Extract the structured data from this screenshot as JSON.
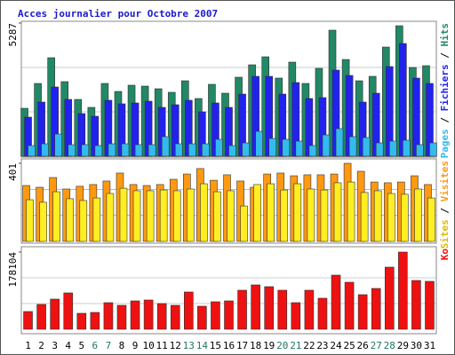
{
  "chart_data": [
    {
      "type": "bar",
      "title": "Acces journalier pour Octobre 2007",
      "ylim": [
        0,
        5287
      ],
      "yticks": [
        5287
      ],
      "legend_separator": " / ",
      "series": [
        {
          "name": "Pages",
          "color": "#33bbee",
          "values": [
            423,
            493,
            881,
            458,
            458,
            423,
            493,
            493,
            458,
            458,
            775,
            493,
            493,
            493,
            670,
            423,
            529,
            987,
            705,
            670,
            599,
            423,
            846,
            1093,
            775,
            740,
            529,
            599,
            634,
            458,
            529
          ]
        },
        {
          "name": "Fichiers",
          "color": "#2222ee",
          "values": [
            1551,
            2150,
            2749,
            2256,
            1692,
            1586,
            2221,
            2080,
            2115,
            2185,
            1939,
            2044,
            2221,
            1762,
            2115,
            1939,
            2467,
            3172,
            3172,
            2467,
            2925,
            2291,
            2326,
            3419,
            3207,
            2150,
            2502,
            3560,
            4476,
            3102,
            2890
          ]
        },
        {
          "name": "Hits",
          "color": "#228866",
          "values": [
            1903,
            2890,
            3912,
            2961,
            2256,
            1939,
            2890,
            2573,
            2820,
            2784,
            2679,
            2538,
            2996,
            2291,
            2855,
            2502,
            3137,
            3630,
            3948,
            3102,
            3736,
            2890,
            3489,
            5005,
            3842,
            2996,
            3172,
            4335,
            5181,
            3525,
            3595
          ]
        }
      ]
    },
    {
      "type": "bar",
      "ylim": [
        0,
        401
      ],
      "yticks": [
        401
      ],
      "legend_separator": " / ",
      "series": [
        {
          "name": "Sites",
          "color": "#ffee22",
          "values": [
            214,
            201,
            255,
            219,
            210,
            223,
            246,
            273,
            260,
            260,
            264,
            260,
            269,
            296,
            255,
            260,
            182,
            292,
            296,
            264,
            296,
            269,
            264,
            301,
            305,
            251,
            260,
            246,
            242,
            269,
            223
          ]
        },
        {
          "name": "Visites",
          "color": "#ff9911",
          "values": [
            287,
            278,
            328,
            269,
            283,
            292,
            310,
            351,
            292,
            287,
            292,
            319,
            346,
            374,
            314,
            342,
            310,
            278,
            346,
            351,
            337,
            342,
            342,
            346,
            401,
            360,
            305,
            301,
            305,
            337,
            292
          ]
        }
      ]
    },
    {
      "type": "bar",
      "ylim": [
        0,
        178104
      ],
      "yticks": [
        178104
      ],
      "categories": [
        "1",
        "2",
        "3",
        "4",
        "5",
        "6",
        "7",
        "8",
        "9",
        "10",
        "11",
        "12",
        "13",
        "14",
        "15",
        "16",
        "17",
        "18",
        "19",
        "20",
        "21",
        "22",
        "23",
        "24",
        "25",
        "26",
        "27",
        "28",
        "29",
        "30",
        "31"
      ],
      "category_colors": [
        "#000000",
        "#000000",
        "#000000",
        "#000000",
        "#000000",
        "#227766",
        "#227766",
        "#000000",
        "#000000",
        "#000000",
        "#000000",
        "#000000",
        "#227766",
        "#227766",
        "#000000",
        "#000000",
        "#000000",
        "#000000",
        "#000000",
        "#227766",
        "#227766",
        "#000000",
        "#000000",
        "#000000",
        "#000000",
        "#000000",
        "#227766",
        "#227766",
        "#000000",
        "#000000",
        "#000000"
      ],
      "series": [
        {
          "name": "Ko",
          "color": "#ee1111",
          "values": [
            40944,
            57322,
            69605,
            83935,
            36850,
            38897,
            61416,
            55274,
            65510,
            67558,
            59369,
            55274,
            85982,
            53227,
            63463,
            65510,
            90077,
            102360,
            98266,
            90077,
            61416,
            90077,
            71652,
            124879,
            108502,
            79841,
            94171,
            143304,
            178104,
            112596,
            110549
          ]
        }
      ]
    }
  ]
}
